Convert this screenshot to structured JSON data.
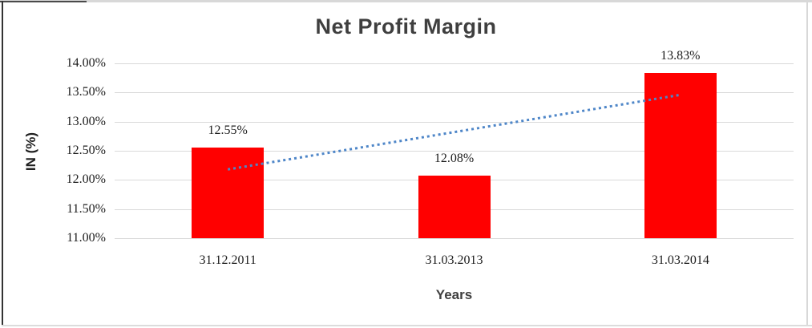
{
  "chart_data": {
    "type": "bar",
    "title": "Net Profit Margin",
    "xlabel": "Years",
    "ylabel": "IN (%)",
    "categories": [
      "31.12.2011",
      "31.03.2013",
      "31.03.2014"
    ],
    "values": [
      12.55,
      12.08,
      13.83
    ],
    "data_labels": [
      "12.55%",
      "12.08%",
      "13.83%"
    ],
    "ylim": [
      11.0,
      14.0
    ],
    "yticks": [
      {
        "label": "11.00%",
        "value": 11.0
      },
      {
        "label": "11.50%",
        "value": 11.5
      },
      {
        "label": "12.00%",
        "value": 12.0
      },
      {
        "label": "12.50%",
        "value": 12.5
      },
      {
        "label": "13.00%",
        "value": 13.0
      },
      {
        "label": "13.50%",
        "value": 13.5
      },
      {
        "label": "14.00%",
        "value": 14.0
      }
    ],
    "grid": true,
    "legend": "none",
    "bar_color": "#FF0000",
    "gridline_color": "#D9D9D9",
    "trendline": {
      "style": "dotted",
      "color": "#4E86C8",
      "start": {
        "category_index": 0,
        "value": 12.18
      },
      "end": {
        "category_index": 2,
        "value": 13.46
      }
    }
  }
}
